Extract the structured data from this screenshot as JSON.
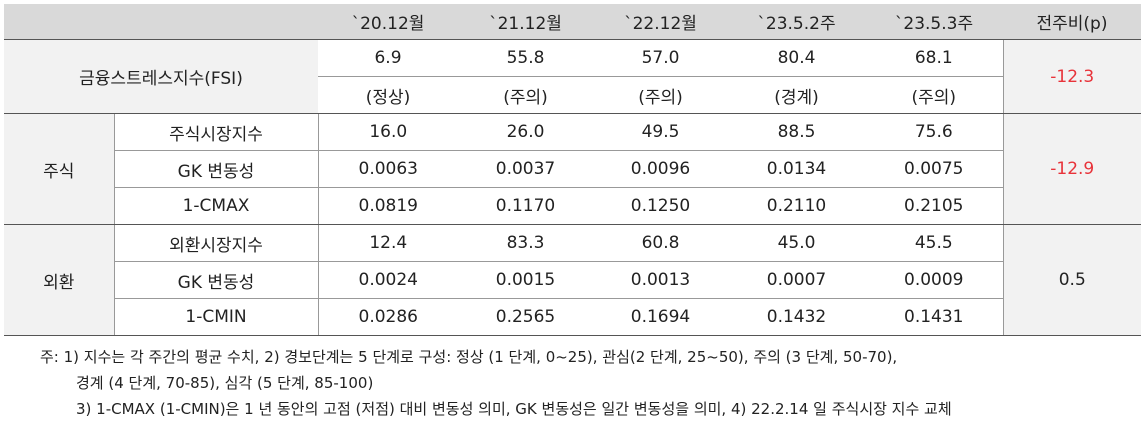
{
  "table": {
    "headers": [
      "`20.12월",
      "`21.12월",
      "`22.12월",
      "`23.5.2주",
      "`23.5.3주",
      "전주비(p)"
    ],
    "fsi": {
      "label": "금융스트레스지수(FSI)",
      "values": [
        "6.9",
        "55.8",
        "57.0",
        "80.4",
        "68.1"
      ],
      "levels": [
        "(정상)",
        "(주의)",
        "(주의)",
        "(경계)",
        "(주의)"
      ],
      "change": "-12.3"
    },
    "stock": {
      "label": "주식",
      "change": "-12.9",
      "rows": [
        {
          "label": "주식시장지수",
          "values": [
            "16.0",
            "26.0",
            "49.5",
            "88.5",
            "75.6"
          ]
        },
        {
          "label": "GK 변동성",
          "values": [
            "0.0063",
            "0.0037",
            "0.0096",
            "0.0134",
            "0.0075"
          ]
        },
        {
          "label": "1-CMAX",
          "values": [
            "0.0819",
            "0.1170",
            "0.1250",
            "0.2110",
            "0.2105"
          ]
        }
      ]
    },
    "fx": {
      "label": "외환",
      "change": "0.5",
      "rows": [
        {
          "label": "외환시장지수",
          "values": [
            "12.4",
            "83.3",
            "60.8",
            "45.0",
            "45.5"
          ]
        },
        {
          "label": "GK 변동성",
          "values": [
            "0.0024",
            "0.0015",
            "0.0013",
            "0.0007",
            "0.0009"
          ]
        },
        {
          "label": "1-CMIN",
          "values": [
            "0.0286",
            "0.2565",
            "0.1694",
            "0.1432",
            "0.1431"
          ]
        }
      ]
    }
  },
  "notes": [
    "주: 1) 지수는 각 주간의 평균 수치, 2) 경보단계는 5 단계로 구성: 정상 (1 단계, 0~25), 관심(2 단계, 25~50), 주의 (3 단계, 50-70),",
    "경계 (4 단계, 70-85), 심각 (5 단계, 85-100)",
    "3) 1-CMAX (1-CMIN)은 1 년 동안의 고점 (저점) 대비 변동성 의미, GK 변동성은 일간 변동성을 의미, 4) 22.2.14 일 주식시장 지수 교체"
  ]
}
